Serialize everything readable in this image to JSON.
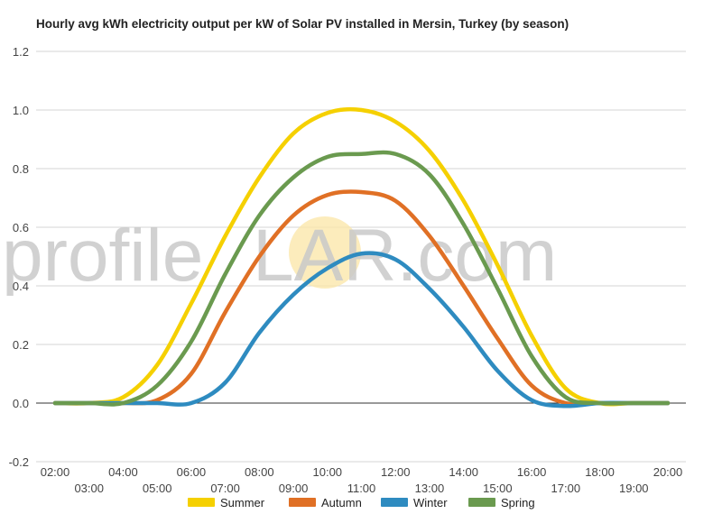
{
  "chart_data": {
    "type": "line",
    "title": "Hourly avg kWh electricity output per kW of Solar PV installed in Mersin, Turkey (by season)",
    "watermark": [
      "profile",
      "S",
      "LAR.com"
    ],
    "x": [
      "02:00",
      "03:00",
      "04:00",
      "05:00",
      "06:00",
      "07:00",
      "08:00",
      "09:00",
      "10:00",
      "11:00",
      "12:00",
      "13:00",
      "14:00",
      "15:00",
      "16:00",
      "17:00",
      "18:00",
      "19:00",
      "20:00"
    ],
    "ylim": [
      -0.2,
      1.2
    ],
    "yticks": [
      "-0.2",
      "0.0",
      "0.2",
      "0.4",
      "0.6",
      "0.8",
      "1.0",
      "1.2"
    ],
    "grid": true,
    "legend_position": "bottom",
    "series": [
      {
        "name": "Summer",
        "color": "#f5d000",
        "values": [
          0.0,
          0.0,
          0.02,
          0.13,
          0.34,
          0.57,
          0.77,
          0.92,
          0.99,
          1.0,
          0.96,
          0.86,
          0.69,
          0.47,
          0.23,
          0.05,
          0.0,
          0.0,
          0.0
        ]
      },
      {
        "name": "Autumn",
        "color": "#e07025",
        "values": [
          0.0,
          0.0,
          0.0,
          0.01,
          0.1,
          0.31,
          0.5,
          0.64,
          0.71,
          0.72,
          0.69,
          0.57,
          0.4,
          0.22,
          0.06,
          0.0,
          0.0,
          0.0,
          0.0
        ]
      },
      {
        "name": "Winter",
        "color": "#2e8bc0",
        "values": [
          0.0,
          0.0,
          0.0,
          0.0,
          0.0,
          0.07,
          0.24,
          0.37,
          0.46,
          0.51,
          0.49,
          0.39,
          0.26,
          0.11,
          0.01,
          -0.01,
          0.0,
          0.0,
          0.0
        ]
      },
      {
        "name": "Spring",
        "color": "#6a9a4f",
        "values": [
          0.0,
          0.0,
          0.0,
          0.06,
          0.21,
          0.44,
          0.64,
          0.77,
          0.84,
          0.85,
          0.85,
          0.78,
          0.61,
          0.39,
          0.16,
          0.02,
          0.0,
          0.0,
          0.0
        ]
      }
    ]
  }
}
